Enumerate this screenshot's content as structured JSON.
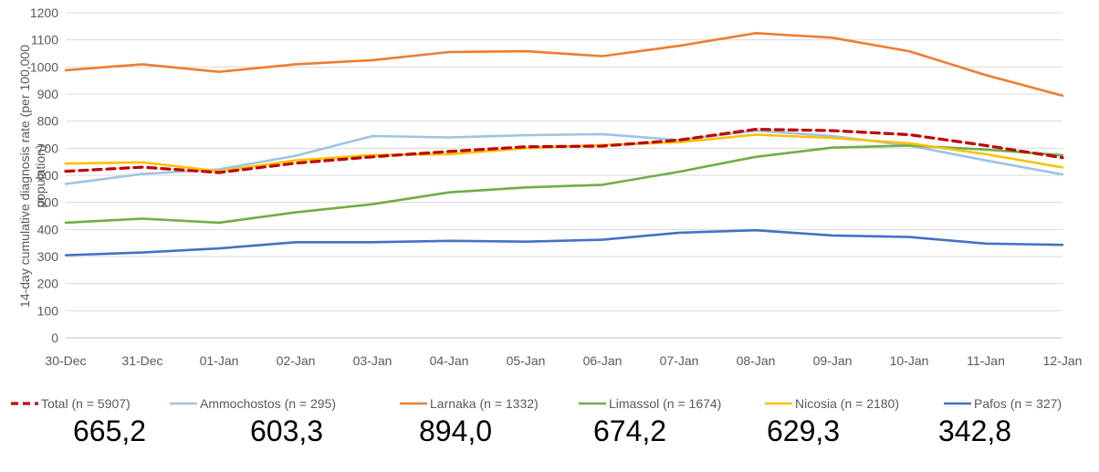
{
  "chart_data": {
    "type": "line",
    "ylabel": "14-day cumulative diagnosis rate (per 100,000 population)",
    "ylabel_lines": [
      "14-day cumulative diagnosis rate (per 100,000",
      "population)"
    ],
    "ylim": [
      0,
      1200
    ],
    "yticks": [
      0,
      100,
      200,
      300,
      400,
      500,
      600,
      700,
      800,
      900,
      1000,
      1100,
      1200
    ],
    "grid": true,
    "legend_position": "bottom",
    "categories": [
      "30-Dec",
      "31-Dec",
      "01-Jan",
      "02-Jan",
      "03-Jan",
      "04-Jan",
      "05-Jan",
      "06-Jan",
      "07-Jan",
      "08-Jan",
      "09-Jan",
      "10-Jan",
      "11-Jan",
      "12-Jan"
    ],
    "series": [
      {
        "name": "Total (n = 5907)",
        "color": "#c00000",
        "dashed": true,
        "values": [
          615,
          630,
          610,
          645,
          668,
          688,
          705,
          708,
          730,
          770,
          765,
          750,
          710,
          665
        ]
      },
      {
        "name": "Ammochostos (n = 295)",
        "color": "#9dc3e6",
        "dashed": false,
        "values": [
          568,
          605,
          622,
          672,
          745,
          740,
          748,
          752,
          730,
          765,
          745,
          710,
          655,
          603
        ]
      },
      {
        "name": "Larnaka (n = 1332)",
        "color": "#ed7d31",
        "dashed": false,
        "values": [
          988,
          1010,
          982,
          1010,
          1025,
          1055,
          1058,
          1040,
          1078,
          1125,
          1108,
          1058,
          970,
          894
        ]
      },
      {
        "name": "Limassol (n = 1674)",
        "color": "#70ad47",
        "dashed": false,
        "values": [
          425,
          440,
          425,
          463,
          493,
          537,
          555,
          565,
          613,
          668,
          702,
          710,
          695,
          674
        ]
      },
      {
        "name": "Nicosia (n = 2180)",
        "color": "#ffc000",
        "dashed": false,
        "values": [
          643,
          648,
          615,
          655,
          675,
          678,
          700,
          712,
          722,
          750,
          738,
          718,
          678,
          629
        ]
      },
      {
        "name": "Pafos (n = 327)",
        "color": "#4472c4",
        "dashed": false,
        "values": [
          305,
          315,
          330,
          353,
          353,
          358,
          355,
          362,
          388,
          397,
          378,
          372,
          348,
          343
        ]
      }
    ]
  },
  "summary_values": [
    "665,2",
    "603,3",
    "894,0",
    "674,2",
    "629,3",
    "342,8"
  ]
}
